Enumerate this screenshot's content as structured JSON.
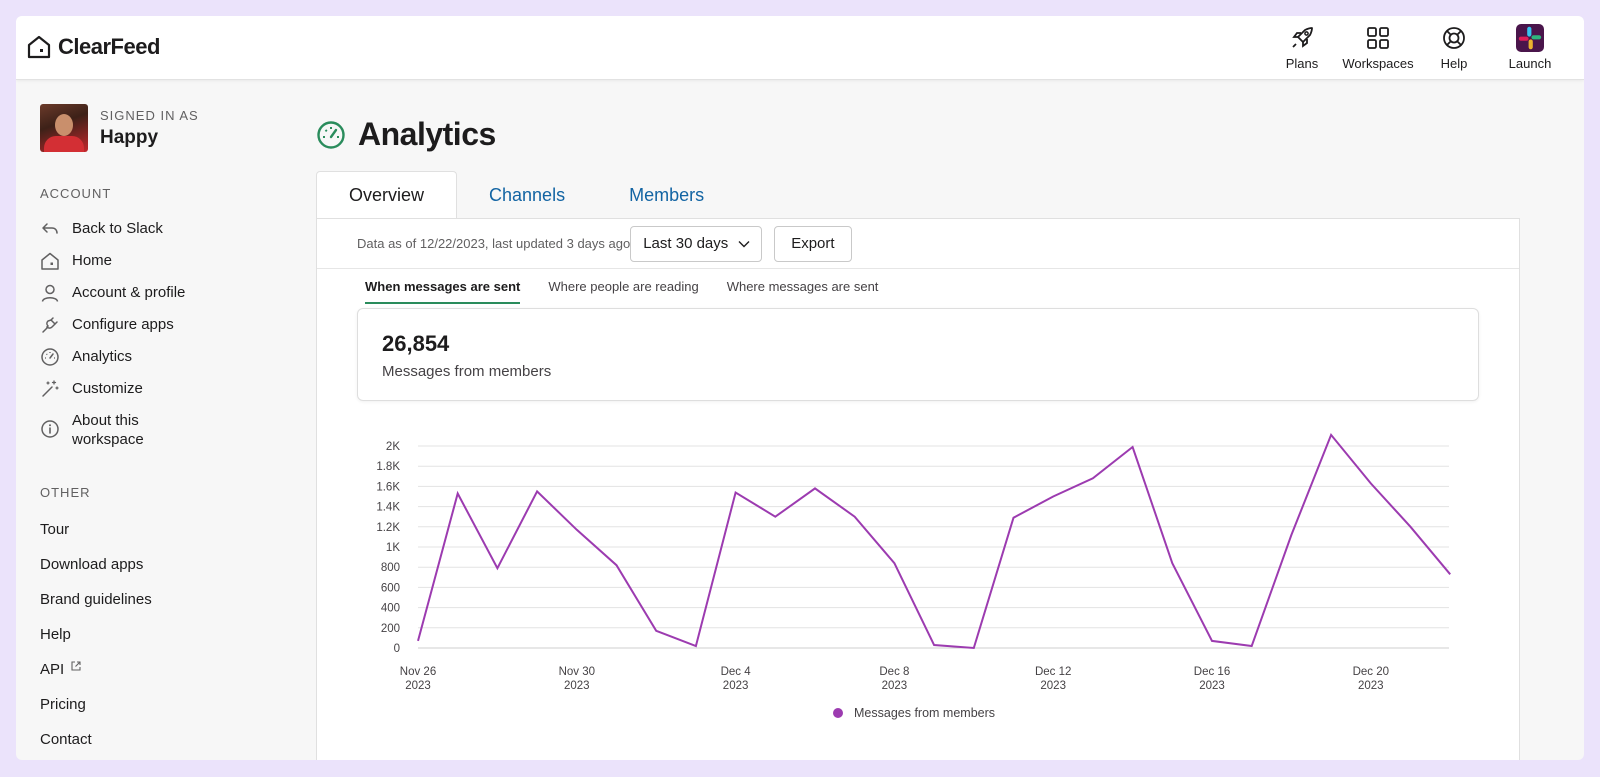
{
  "app": {
    "name": "ClearFeed"
  },
  "header": {
    "actions": [
      {
        "label": "Plans",
        "icon": "rocket-icon"
      },
      {
        "label": "Workspaces",
        "icon": "grid-icon"
      },
      {
        "label": "Help",
        "icon": "lifebuoy-icon"
      },
      {
        "label": "Launch",
        "icon": "slack-icon"
      }
    ]
  },
  "user": {
    "signed_in_label": "SIGNED IN AS",
    "name": "Happy"
  },
  "sidebar": {
    "account_title": "ACCOUNT",
    "account_items": [
      {
        "label": "Back to Slack",
        "icon": "back-arrow-icon"
      },
      {
        "label": "Home",
        "icon": "home-icon"
      },
      {
        "label": "Account & profile",
        "icon": "user-icon"
      },
      {
        "label": "Configure apps",
        "icon": "plug-icon"
      },
      {
        "label": "Analytics",
        "icon": "gauge-icon"
      },
      {
        "label": "Customize",
        "icon": "magic-wand-icon"
      },
      {
        "label": "About this workspace",
        "label_line1": "About this",
        "label_line2": "workspace",
        "icon": "info-icon"
      }
    ],
    "other_title": "OTHER",
    "other_items": [
      {
        "label": "Tour"
      },
      {
        "label": "Download apps"
      },
      {
        "label": "Brand guidelines"
      },
      {
        "label": "Help"
      },
      {
        "label": "API",
        "icon": "external-link-icon"
      },
      {
        "label": "Pricing"
      },
      {
        "label": "Contact"
      }
    ]
  },
  "page": {
    "title": "Analytics",
    "tabs": [
      {
        "label": "Overview",
        "active": true
      },
      {
        "label": "Channels",
        "active": false
      },
      {
        "label": "Members",
        "active": false
      }
    ],
    "as_of": "Data as of 12/22/2023, last updated 3 days ago",
    "range_select": "Last 30 days",
    "export_label": "Export",
    "subtabs": [
      {
        "label": "When messages are sent",
        "active": true
      },
      {
        "label": "Where people are reading",
        "active": false
      },
      {
        "label": "Where messages are sent",
        "active": false
      }
    ],
    "stat": {
      "value": "26,854",
      "label": "Messages from members"
    }
  },
  "colors": {
    "accent": "#2a8c5c",
    "link": "#1264a3",
    "series": "#9c3bb0"
  },
  "chart_data": {
    "type": "line",
    "title": "",
    "xlabel": "",
    "ylabel": "",
    "ylim": [
      0,
      2000
    ],
    "y_ticks": [
      "0",
      "200",
      "400",
      "600",
      "800",
      "1K",
      "1.2K",
      "1.4K",
      "1.6K",
      "1.8K",
      "2K"
    ],
    "x_ticks": [
      {
        "line1": "Nov 26",
        "line2": "2023"
      },
      {
        "line1": "Nov 30",
        "line2": "2023"
      },
      {
        "line1": "Dec 4",
        "line2": "2023"
      },
      {
        "line1": "Dec 8",
        "line2": "2023"
      },
      {
        "line1": "Dec 12",
        "line2": "2023"
      },
      {
        "line1": "Dec 16",
        "line2": "2023"
      },
      {
        "line1": "Dec 20",
        "line2": "2023"
      }
    ],
    "x": [
      "Nov 26",
      "Nov 27",
      "Nov 28",
      "Nov 29",
      "Nov 30",
      "Dec 1",
      "Dec 2",
      "Dec 3",
      "Dec 4",
      "Dec 5",
      "Dec 6",
      "Dec 7",
      "Dec 8",
      "Dec 9",
      "Dec 10",
      "Dec 11",
      "Dec 12",
      "Dec 13",
      "Dec 14",
      "Dec 15",
      "Dec 16",
      "Dec 17",
      "Dec 18",
      "Dec 19",
      "Dec 20",
      "Dec 21",
      "Dec 22"
    ],
    "series": [
      {
        "name": "Messages from members",
        "values": [
          70,
          1530,
          790,
          1550,
          1170,
          820,
          170,
          20,
          1540,
          1300,
          1580,
          1300,
          840,
          30,
          0,
          1290,
          1500,
          1680,
          1990,
          840,
          70,
          20,
          1120,
          2110,
          1630,
          1200,
          730
        ]
      }
    ],
    "grid": true,
    "legend": "bottom-center"
  }
}
